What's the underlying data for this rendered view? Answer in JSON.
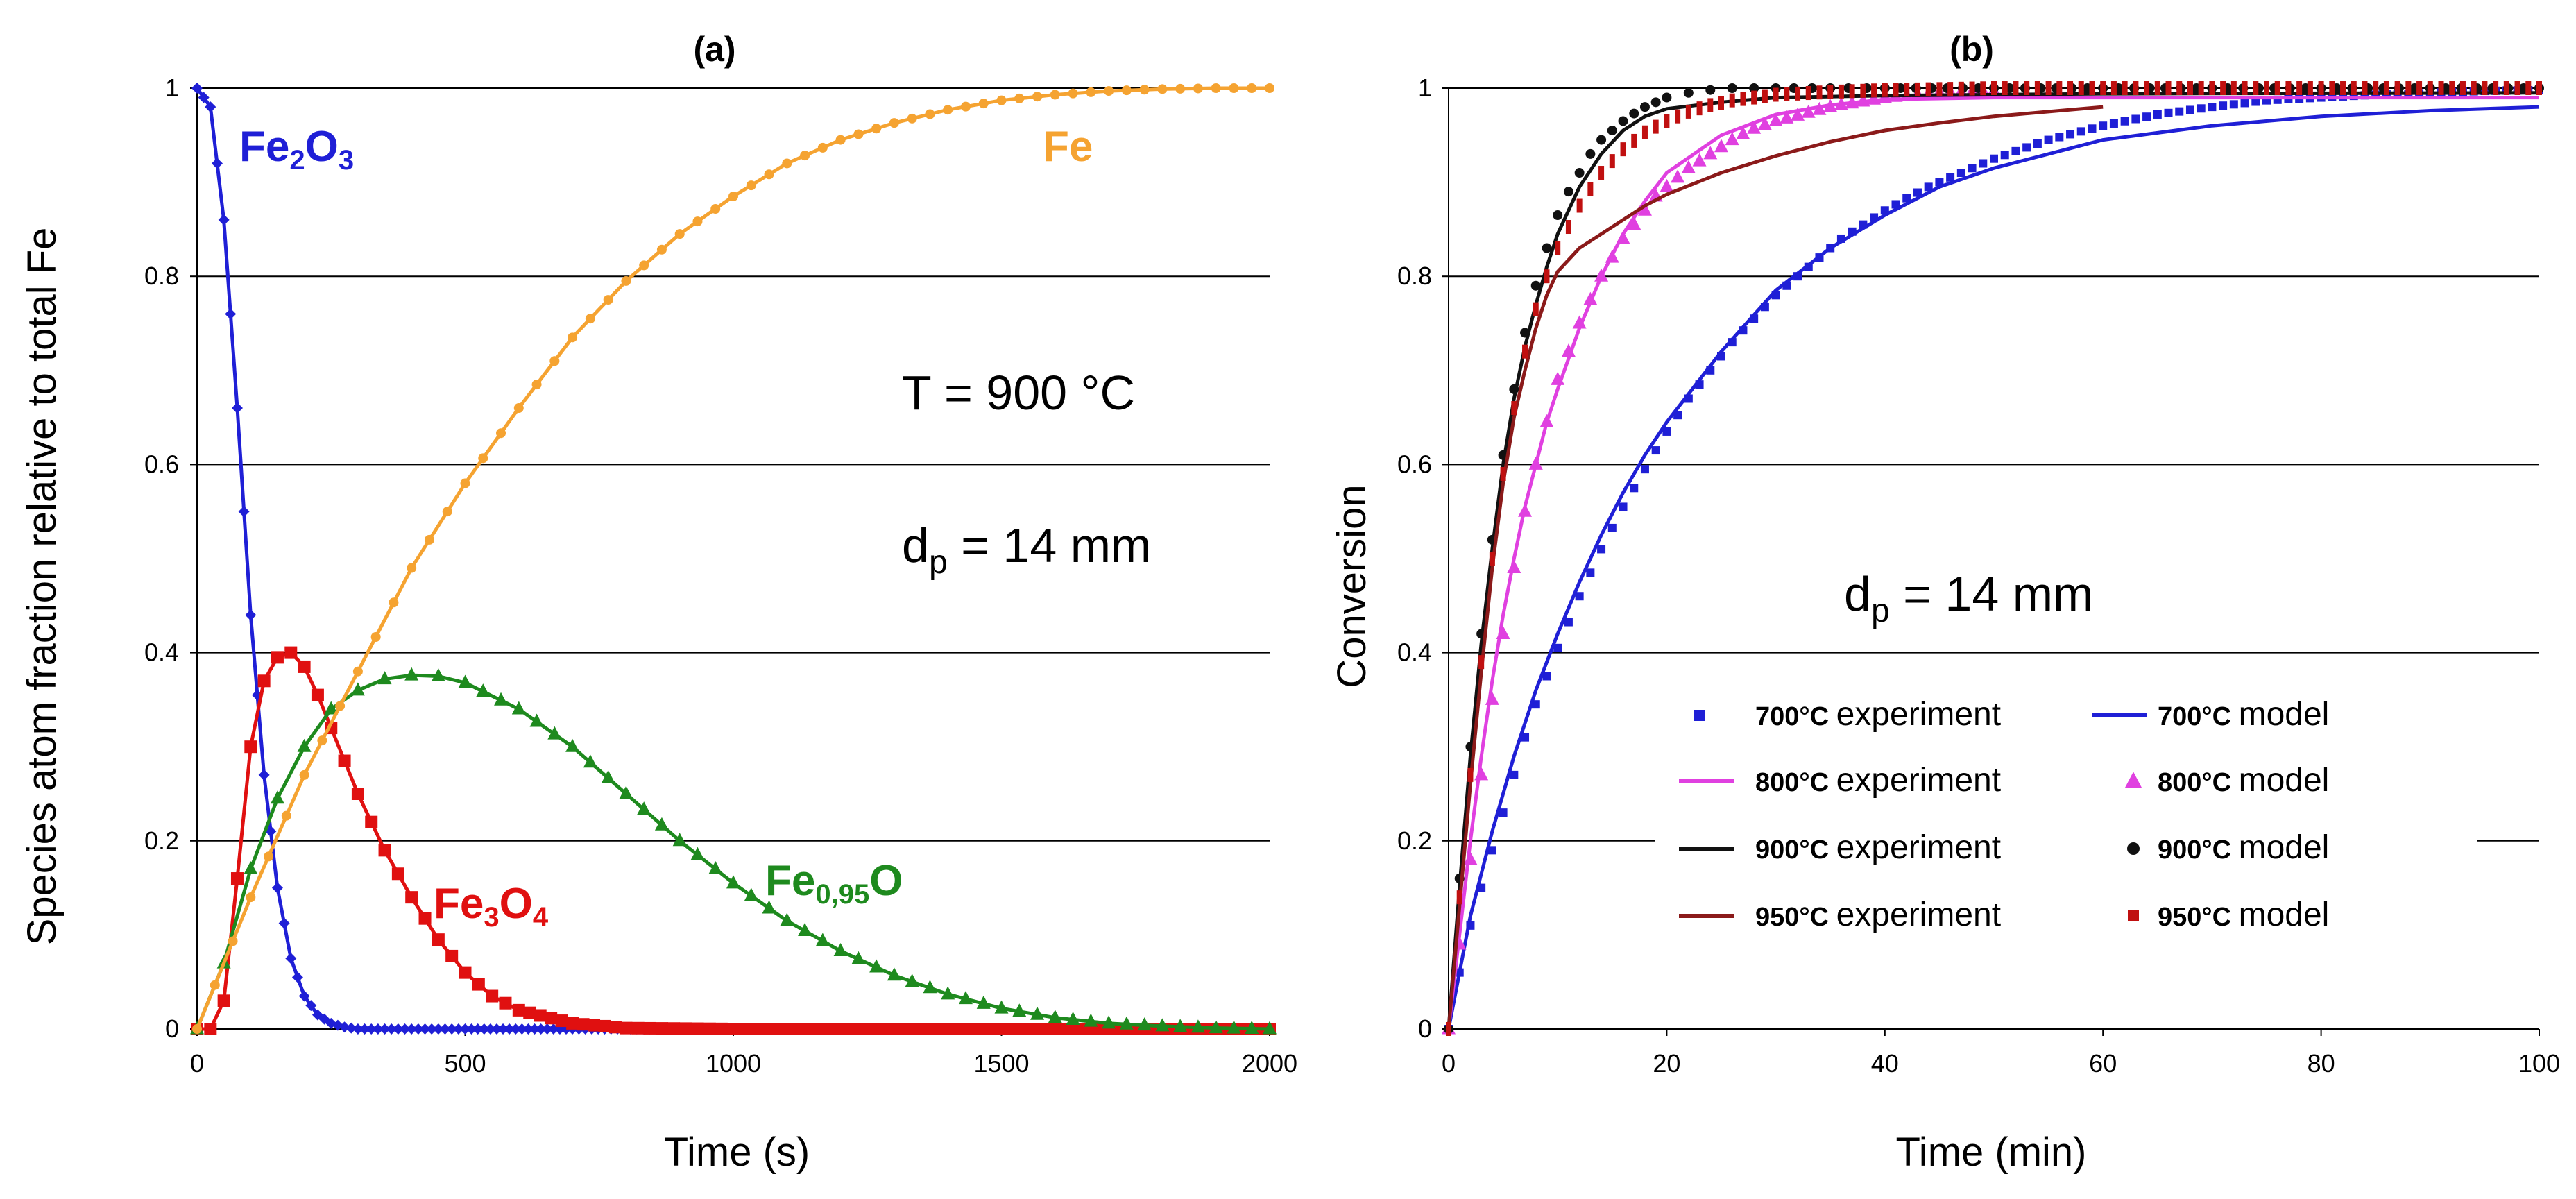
{
  "chart_data": [
    {
      "type": "line",
      "title": "(a)",
      "xlabel": "Time (s)",
      "ylabel": "Species atom fraction relative to total Fe",
      "xlim": [
        0,
        2000
      ],
      "ylim": [
        0,
        1
      ],
      "xticks": [
        "0",
        "500",
        "1000",
        "1500",
        "2000"
      ],
      "yticks": [
        "0",
        "0.2",
        "0.4",
        "0.6",
        "0.8",
        "1"
      ],
      "grid": "horizontal",
      "annotations": {
        "temperature": "T = 900 °C",
        "diameter_prefix": "d",
        "diameter_sub": "p",
        "diameter_suffix": " = 14 mm"
      },
      "series": [
        {
          "name": "Fe2O3",
          "label_parts": [
            [
              "Fe",
              ""
            ],
            [
              "2",
              "sub"
            ],
            [
              "O",
              ""
            ],
            [
              "3",
              "sub"
            ]
          ],
          "color": "#1f1fd6",
          "marker": "diamond",
          "x": [
            0,
            25,
            50,
            75,
            100,
            125,
            150,
            175,
            200,
            225,
            250,
            275,
            300,
            350,
            400,
            500,
            700,
            1000,
            1500,
            2000
          ],
          "y": [
            1.0,
            0.98,
            0.86,
            0.66,
            0.44,
            0.27,
            0.15,
            0.075,
            0.035,
            0.015,
            0.006,
            0.002,
            0.0,
            0.0,
            0.0,
            0.0,
            0.0,
            0.0,
            0.0,
            0.0
          ]
        },
        {
          "name": "Fe3O4",
          "label_parts": [
            [
              "Fe",
              ""
            ],
            [
              "3",
              "sub"
            ],
            [
              "O",
              ""
            ],
            [
              "4",
              "sub"
            ]
          ],
          "color": "#e01010",
          "marker": "square",
          "x": [
            0,
            25,
            50,
            75,
            100,
            125,
            150,
            175,
            200,
            225,
            250,
            300,
            350,
            400,
            450,
            500,
            550,
            600,
            700,
            800,
            1000,
            1500,
            2000
          ],
          "y": [
            0.0,
            0.0,
            0.03,
            0.16,
            0.3,
            0.37,
            0.395,
            0.4,
            0.385,
            0.355,
            0.32,
            0.25,
            0.19,
            0.14,
            0.095,
            0.06,
            0.035,
            0.02,
            0.006,
            0.001,
            0.0,
            0.0,
            0.0
          ]
        },
        {
          "name": "Fe0,95O",
          "label_parts": [
            [
              "Fe",
              ""
            ],
            [
              "0,95",
              "sub"
            ],
            [
              "O",
              ""
            ]
          ],
          "color": "#1e8a1e",
          "marker": "triangle",
          "x": [
            0,
            50,
            100,
            150,
            200,
            250,
            300,
            350,
            400,
            450,
            500,
            600,
            700,
            800,
            900,
            1000,
            1100,
            1200,
            1300,
            1400,
            1500,
            1600,
            1700,
            1800,
            1900,
            2000
          ],
          "y": [
            0.0,
            0.07,
            0.17,
            0.245,
            0.3,
            0.34,
            0.36,
            0.372,
            0.376,
            0.375,
            0.368,
            0.34,
            0.3,
            0.25,
            0.2,
            0.155,
            0.115,
            0.083,
            0.057,
            0.037,
            0.022,
            0.012,
            0.006,
            0.003,
            0.001,
            0.0
          ]
        },
        {
          "name": "Fe",
          "label_parts": [
            [
              "Fe",
              ""
            ]
          ],
          "color": "#f5a331",
          "marker": "circle",
          "x": [
            0,
            100,
            200,
            300,
            400,
            500,
            600,
            700,
            800,
            900,
            1000,
            1100,
            1200,
            1300,
            1400,
            1500,
            1600,
            1700,
            1800,
            1900,
            2000
          ],
          "y": [
            0.0,
            0.14,
            0.27,
            0.38,
            0.49,
            0.58,
            0.66,
            0.735,
            0.795,
            0.845,
            0.885,
            0.92,
            0.945,
            0.963,
            0.977,
            0.987,
            0.993,
            0.997,
            0.999,
            1.0,
            1.0
          ]
        }
      ]
    },
    {
      "type": "line",
      "title": "(b)",
      "xlabel": "Time (min)",
      "ylabel": "Conversion",
      "xlim": [
        0,
        100
      ],
      "ylim": [
        0,
        1
      ],
      "xticks": [
        "0",
        "20",
        "40",
        "60",
        "80",
        "100"
      ],
      "yticks": [
        "0",
        "0.2",
        "0.4",
        "0.6",
        "0.8",
        "1"
      ],
      "grid": "horizontal",
      "annotations": {
        "diameter_prefix": "d",
        "diameter_sub": "p",
        "diameter_suffix": " = 14 mm"
      },
      "legend": {
        "placement": "bottom-center",
        "entries": [
          {
            "temp": "700°C",
            "text": "experiment",
            "color": "#1f1fd6",
            "style": "square"
          },
          {
            "temp": "700°C",
            "text": "model",
            "color": "#1f1fd6",
            "style": "line"
          },
          {
            "temp": "800°C",
            "text": "experiment",
            "color": "#e040e0",
            "style": "line"
          },
          {
            "temp": "800°C",
            "text": "model",
            "color": "#e040e0",
            "style": "triangle"
          },
          {
            "temp": "900°C",
            "text": "experiment",
            "color": "#111111",
            "style": "line"
          },
          {
            "temp": "900°C",
            "text": "model",
            "color": "#111111",
            "style": "circle"
          },
          {
            "temp": "950°C",
            "text": "experiment",
            "color": "#8b1a1a",
            "style": "line"
          },
          {
            "temp": "950°C",
            "text": "model",
            "color": "#c01010",
            "style": "square"
          }
        ]
      },
      "series": [
        {
          "name": "700°C experiment",
          "color": "#1f1fd6",
          "style": "square",
          "x": [
            0,
            1,
            2,
            3,
            4,
            5,
            6,
            7,
            8,
            9,
            10,
            12,
            14,
            16,
            18,
            20,
            22,
            24,
            26,
            28,
            30,
            32,
            34,
            36,
            38,
            40,
            42,
            44,
            46,
            48,
            50,
            55,
            60,
            65,
            70,
            75,
            80,
            85,
            90,
            95,
            100
          ],
          "y": [
            0.0,
            0.06,
            0.11,
            0.15,
            0.19,
            0.23,
            0.27,
            0.31,
            0.345,
            0.375,
            0.405,
            0.46,
            0.51,
            0.555,
            0.595,
            0.635,
            0.67,
            0.7,
            0.73,
            0.755,
            0.78,
            0.8,
            0.82,
            0.84,
            0.855,
            0.87,
            0.883,
            0.895,
            0.905,
            0.915,
            0.925,
            0.945,
            0.96,
            0.972,
            0.98,
            0.987,
            0.99,
            0.993,
            0.995,
            0.997,
            0.998
          ]
        },
        {
          "name": "700°C model",
          "color": "#1f1fd6",
          "style": "line",
          "x": [
            0,
            2,
            4,
            6,
            8,
            10,
            12,
            14,
            16,
            18,
            20,
            25,
            30,
            35,
            40,
            45,
            50,
            55,
            60,
            70,
            80,
            90,
            100
          ],
          "y": [
            0.0,
            0.12,
            0.21,
            0.29,
            0.36,
            0.42,
            0.475,
            0.525,
            0.57,
            0.61,
            0.645,
            0.72,
            0.785,
            0.83,
            0.865,
            0.895,
            0.915,
            0.93,
            0.945,
            0.96,
            0.97,
            0.976,
            0.98
          ]
        },
        {
          "name": "800°C experiment",
          "color": "#e040e0",
          "style": "line",
          "x": [
            0,
            1,
            2,
            3,
            4,
            5,
            6,
            7,
            8,
            9,
            10,
            12,
            14,
            16,
            18,
            20,
            25,
            30,
            35,
            40,
            50,
            60,
            80,
            100
          ],
          "y": [
            0.0,
            0.1,
            0.2,
            0.29,
            0.37,
            0.44,
            0.5,
            0.555,
            0.6,
            0.645,
            0.68,
            0.745,
            0.8,
            0.845,
            0.88,
            0.91,
            0.95,
            0.972,
            0.982,
            0.988,
            0.99,
            0.99,
            0.99,
            0.99
          ]
        },
        {
          "name": "800°C model",
          "color": "#e040e0",
          "style": "triangle",
          "x": [
            0,
            1,
            2,
            3,
            4,
            5,
            6,
            7,
            8,
            9,
            10,
            11,
            12,
            13,
            14,
            15,
            16,
            17,
            18,
            19,
            20,
            22,
            24,
            26,
            28,
            30,
            35,
            40,
            45,
            50
          ],
          "y": [
            0.0,
            0.09,
            0.18,
            0.27,
            0.35,
            0.42,
            0.49,
            0.55,
            0.6,
            0.645,
            0.69,
            0.72,
            0.75,
            0.775,
            0.8,
            0.82,
            0.84,
            0.855,
            0.87,
            0.885,
            0.895,
            0.915,
            0.93,
            0.945,
            0.957,
            0.965,
            0.98,
            0.99,
            0.995,
            0.997
          ]
        },
        {
          "name": "900°C experiment",
          "color": "#111111",
          "style": "line",
          "x": [
            0,
            1,
            2,
            3,
            4,
            5,
            6,
            7,
            8,
            9,
            10,
            12,
            14,
            16,
            18,
            20,
            25,
            30,
            40,
            60,
            100
          ],
          "y": [
            0.0,
            0.15,
            0.29,
            0.41,
            0.51,
            0.6,
            0.67,
            0.725,
            0.77,
            0.81,
            0.845,
            0.895,
            0.93,
            0.955,
            0.97,
            0.978,
            0.985,
            0.99,
            0.992,
            0.994,
            0.995
          ]
        },
        {
          "name": "900°C model",
          "color": "#111111",
          "style": "circle",
          "x": [
            0,
            1,
            2,
            3,
            4,
            5,
            6,
            7,
            8,
            9,
            10,
            11,
            12,
            13,
            14,
            15,
            16,
            17,
            18,
            19,
            20,
            22,
            24,
            26,
            28,
            30,
            35,
            40,
            50,
            60,
            70,
            80,
            90,
            100
          ],
          "y": [
            0.0,
            0.16,
            0.3,
            0.42,
            0.52,
            0.61,
            0.68,
            0.74,
            0.79,
            0.83,
            0.865,
            0.89,
            0.91,
            0.93,
            0.945,
            0.955,
            0.965,
            0.973,
            0.98,
            0.985,
            0.99,
            0.995,
            0.998,
            1.0,
            1.0,
            1.0,
            1.0,
            1.0,
            1.0,
            1.0,
            1.0,
            1.0,
            1.0,
            1.0
          ]
        },
        {
          "name": "950°C experiment",
          "color": "#8b1a1a",
          "style": "line",
          "x": [
            0,
            1,
            2,
            3,
            4,
            5,
            6,
            7,
            8,
            9,
            10,
            12,
            14,
            16,
            18,
            20,
            25,
            30,
            35,
            40,
            45,
            50,
            55,
            60
          ],
          "y": [
            0.0,
            0.13,
            0.26,
            0.38,
            0.49,
            0.58,
            0.65,
            0.7,
            0.745,
            0.78,
            0.805,
            0.83,
            0.845,
            0.86,
            0.875,
            0.887,
            0.91,
            0.928,
            0.943,
            0.955,
            0.963,
            0.97,
            0.975,
            0.98
          ]
        },
        {
          "name": "950°C model",
          "color": "#c01010",
          "style": "square",
          "x": [
            0,
            1,
            2,
            3,
            4,
            5,
            6,
            7,
            8,
            9,
            10,
            12,
            14,
            16,
            18,
            20,
            22,
            24,
            26,
            28,
            30,
            35,
            40,
            50,
            60,
            70,
            80,
            90,
            100
          ],
          "y": [
            0.0,
            0.14,
            0.27,
            0.39,
            0.5,
            0.59,
            0.66,
            0.72,
            0.765,
            0.8,
            0.83,
            0.875,
            0.91,
            0.935,
            0.953,
            0.965,
            0.975,
            0.982,
            0.987,
            0.99,
            0.993,
            0.996,
            0.998,
            1.0,
            1.0,
            1.0,
            1.0,
            1.0,
            1.0
          ]
        }
      ]
    }
  ]
}
